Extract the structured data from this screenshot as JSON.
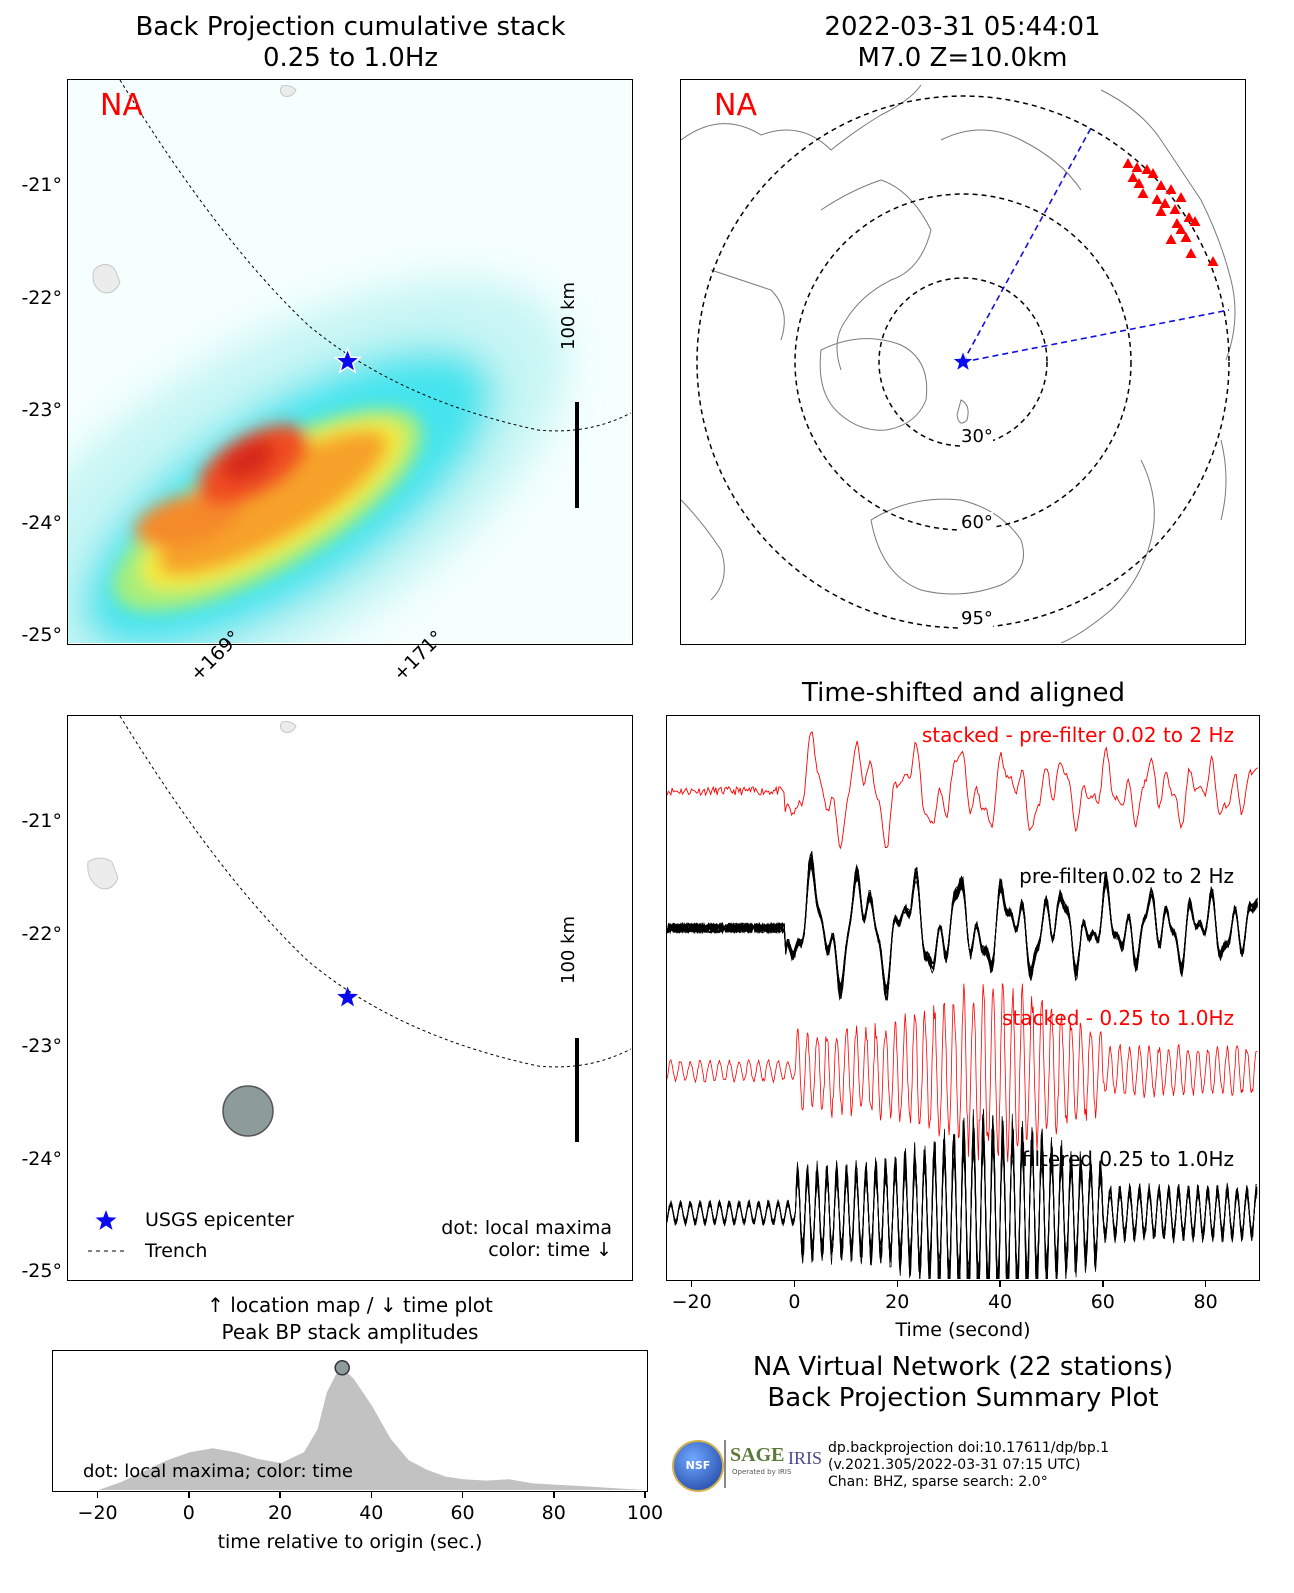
{
  "panels": {
    "bp_map": {
      "title_line1": "Back Projection cumulative stack",
      "title_line2": "0.25 to 1.0Hz",
      "network_label": "NA",
      "scale_label": "100 km",
      "lat_ticks": [
        "-21°",
        "-22°",
        "-23°",
        "-24°",
        "-25°"
      ],
      "lon_ticks": [
        "+169°",
        "+171°"
      ]
    },
    "global_map": {
      "title_line1": "2022-03-31 05:44:01",
      "title_line2": "M7.0 Z=10.0km",
      "network_label": "NA",
      "ring_labels": [
        "30°",
        "60°",
        "95°"
      ]
    },
    "time_map": {
      "lat_ticks": [
        "-21°",
        "-22°",
        "-23°",
        "-24°",
        "-25°"
      ],
      "scale_label": "100 km",
      "legend": {
        "epicenter": "USGS epicenter",
        "trench": "Trench"
      },
      "note_line1": "dot: local maxima",
      "note_line2": "color: time ↓"
    },
    "waveforms": {
      "title": "Time-shifted and aligned",
      "trace_labels": [
        "stacked - pre-filter 0.02 to 2 Hz",
        "pre-filter 0.02 to 2 Hz",
        "stacked - 0.25 to 1.0Hz",
        "filtered 0.25 to 1.0Hz"
      ],
      "x_ticks": [
        "−20",
        "0",
        "20",
        "40",
        "60",
        "80"
      ],
      "xlabel": "Time (second)"
    },
    "peak": {
      "title_line1": "↑ location map / ↓ time plot",
      "title_line2": "Peak BP stack amplitudes",
      "inner_label": "dot: local maxima; color: time",
      "x_ticks": [
        "−20",
        "0",
        "20",
        "40",
        "60",
        "80",
        "100"
      ],
      "xlabel": "time relative to origin (sec.)"
    },
    "summary": {
      "line1": "NA Virtual Network (22 stations)",
      "line2": "Back Projection Summary Plot"
    },
    "credits": {
      "logo_nsf": "NSF",
      "logo_sage": "SAGE",
      "logo_sage_sub": "Operated by IRIS",
      "logo_iris": "IRIS",
      "line1": "dp.backprojection doi:10.17611/dp/bp.1",
      "line2": "(v.2021.305/2022-03-31 07:15 UTC)",
      "line3": "Chan: BHZ, sparse search: 2.0°"
    }
  },
  "chart_data": [
    {
      "type": "heatmap",
      "title": "Back Projection cumulative stack 0.25 to 1.0Hz",
      "ylim": [
        -25.1,
        -20.1
      ],
      "yticks": [
        -21,
        -22,
        -23,
        -24,
        -25
      ],
      "xticks": [
        169,
        171
      ],
      "epicenter": {
        "lon": 170.04,
        "lat": -22.6
      },
      "peak_region": {
        "lon": 169.3,
        "lat": -23.5
      }
    },
    {
      "type": "scatter",
      "title": "2022-03-31 05:44:01 M7.0 Z=10.0km",
      "rings_deg": [
        30,
        60,
        95
      ],
      "stations": 22
    },
    {
      "type": "scatter",
      "ylim": [
        -25.1,
        -20.1
      ],
      "yticks": [
        -21,
        -22,
        -23,
        -24,
        -25
      ],
      "local_maximum": {
        "lon": 169.0,
        "lat": -23.58,
        "color": "#8e9b9b"
      },
      "epicenter": {
        "lon": 170.04,
        "lat": -22.6
      }
    },
    {
      "type": "line",
      "title": "Time-shifted and aligned",
      "xlabel": "Time (second)",
      "xlim": [
        -25,
        90
      ],
      "xticks": [
        -20,
        0,
        20,
        40,
        60,
        80
      ],
      "series": [
        {
          "name": "stacked - pre-filter 0.02 to 2 Hz",
          "color": "#ff0000"
        },
        {
          "name": "pre-filter 0.02 to 2 Hz",
          "color": "#000000"
        },
        {
          "name": "stacked - 0.25 to 1.0Hz",
          "color": "#ff0000"
        },
        {
          "name": "filtered 0.25 to 1.0Hz",
          "color": "#000000"
        }
      ]
    },
    {
      "type": "area",
      "title": "↑ location map / ↓ time plot Peak BP stack amplitudes",
      "xlabel": "time relative to origin (sec.)",
      "xlim": [
        -30,
        100
      ],
      "xticks": [
        -20,
        0,
        20,
        40,
        60,
        80,
        100
      ],
      "ylim": [
        0,
        1
      ],
      "x": [
        -20,
        -15,
        -10,
        -5,
        0,
        5,
        10,
        15,
        20,
        25,
        28,
        30,
        33,
        36,
        40,
        44,
        48,
        52,
        56,
        60,
        65,
        70,
        75,
        80,
        85,
        90,
        95,
        100
      ],
      "values": [
        0.0,
        0.06,
        0.14,
        0.22,
        0.28,
        0.31,
        0.28,
        0.23,
        0.2,
        0.28,
        0.45,
        0.72,
        0.92,
        0.82,
        0.62,
        0.38,
        0.22,
        0.15,
        0.1,
        0.08,
        0.07,
        0.08,
        0.05,
        0.04,
        0.03,
        0.02,
        0.01,
        0.0
      ],
      "dot": {
        "x": 33.4,
        "y": 0.92
      }
    }
  ]
}
